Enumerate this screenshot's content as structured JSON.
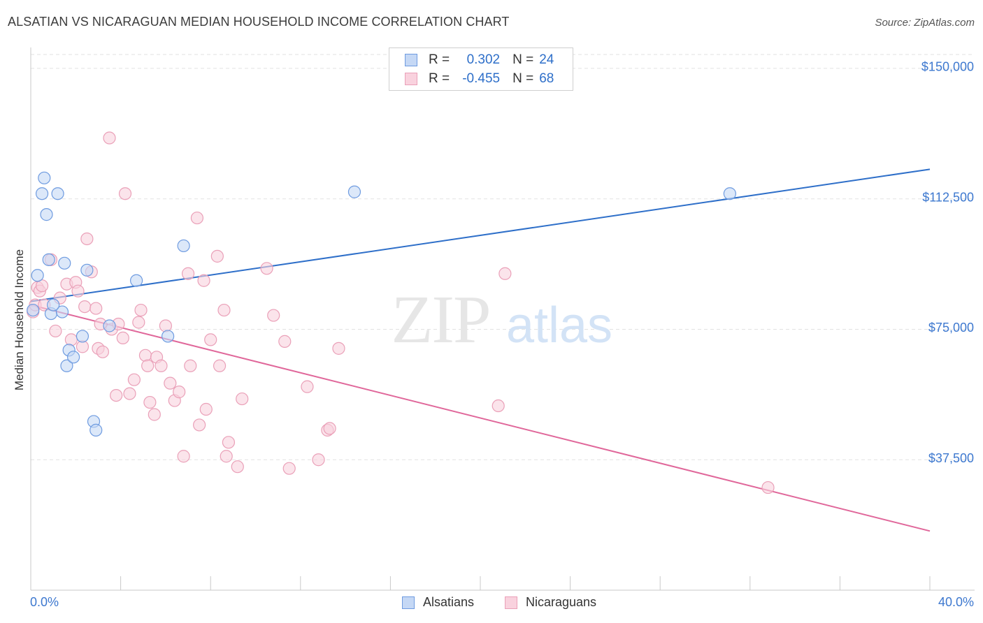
{
  "title": "ALSATIAN VS NICARAGUAN MEDIAN HOUSEHOLD INCOME CORRELATION CHART",
  "source": "Source: ZipAtlas.com",
  "watermark": {
    "zip": "ZIP",
    "atlas": "atlas"
  },
  "legend": {
    "alsatian": {
      "r_label": "R =",
      "r_value": "0.302",
      "n_label": "N =",
      "n_value": "24"
    },
    "nicaraguan": {
      "r_label": "R =",
      "r_value": "-0.455",
      "n_label": "N =",
      "n_value": "68"
    }
  },
  "bottom_legend": {
    "alsatians": "Alsatians",
    "nicaraguans": "Nicaraguans"
  },
  "colors": {
    "alsatian_fill": "#c5d8f5",
    "alsatian_stroke": "#6e9be0",
    "alsatian_line": "#2e6fc9",
    "nicaraguan_fill": "#f9d2de",
    "nicaraguan_stroke": "#eaa0b8",
    "nicaraguan_line": "#e0679a",
    "axis_label": "#3d78cf"
  },
  "chart_data": {
    "type": "scatter",
    "title": "ALSATIAN VS NICARAGUAN MEDIAN HOUSEHOLD INCOME CORRELATION CHART",
    "xlabel": "",
    "ylabel": "Median Household Income",
    "xlim": [
      0,
      40
    ],
    "ylim": [
      0,
      154000
    ],
    "x_tick_labels": [
      "0.0%",
      "40.0%"
    ],
    "y_ticks": [
      37500,
      75000,
      112500,
      150000
    ],
    "y_tick_labels": [
      "$37,500",
      "$75,000",
      "$112,500",
      "$150,000"
    ],
    "grid": true,
    "legend_position": "top-center",
    "series": [
      {
        "name": "Alsatians",
        "r": 0.302,
        "n": 24,
        "trend": {
          "x": [
            0,
            40
          ],
          "y": [
            83000,
            121000
          ]
        },
        "points": [
          [
            0.1,
            80500
          ],
          [
            0.3,
            90500
          ],
          [
            0.5,
            114000
          ],
          [
            0.6,
            118500
          ],
          [
            0.7,
            108000
          ],
          [
            0.8,
            95000
          ],
          [
            0.9,
            79500
          ],
          [
            1.2,
            114000
          ],
          [
            1.4,
            80000
          ],
          [
            1.5,
            94000
          ],
          [
            1.6,
            64500
          ],
          [
            1.7,
            69000
          ],
          [
            1.9,
            67000
          ],
          [
            2.3,
            73000
          ],
          [
            2.5,
            92000
          ],
          [
            2.8,
            48500
          ],
          [
            2.9,
            46000
          ],
          [
            3.5,
            76000
          ],
          [
            4.7,
            89000
          ],
          [
            6.1,
            73000
          ],
          [
            6.8,
            99000
          ],
          [
            14.4,
            114500
          ],
          [
            31.1,
            114000
          ],
          [
            1.0,
            82000
          ]
        ]
      },
      {
        "name": "Nicaraguans",
        "r": -0.455,
        "n": 68,
        "trend": {
          "x": [
            0,
            40
          ],
          "y": [
            82000,
            17000
          ]
        },
        "points": [
          [
            0.1,
            80000
          ],
          [
            0.2,
            82000
          ],
          [
            0.3,
            87000
          ],
          [
            0.4,
            86000
          ],
          [
            0.5,
            87500
          ],
          [
            0.6,
            82000
          ],
          [
            0.9,
            95000
          ],
          [
            1.1,
            74500
          ],
          [
            1.3,
            84000
          ],
          [
            1.6,
            88000
          ],
          [
            1.8,
            72000
          ],
          [
            2.0,
            88500
          ],
          [
            2.1,
            86000
          ],
          [
            2.3,
            70000
          ],
          [
            2.4,
            81500
          ],
          [
            2.5,
            101000
          ],
          [
            2.7,
            91500
          ],
          [
            2.9,
            81000
          ],
          [
            3.0,
            69500
          ],
          [
            3.1,
            76500
          ],
          [
            3.2,
            68500
          ],
          [
            3.5,
            130000
          ],
          [
            3.6,
            75000
          ],
          [
            3.8,
            56000
          ],
          [
            3.9,
            76500
          ],
          [
            4.1,
            72500
          ],
          [
            4.2,
            114000
          ],
          [
            4.4,
            56500
          ],
          [
            4.6,
            60500
          ],
          [
            4.8,
            77000
          ],
          [
            4.9,
            80500
          ],
          [
            5.1,
            67500
          ],
          [
            5.2,
            64500
          ],
          [
            5.3,
            54000
          ],
          [
            5.5,
            50500
          ],
          [
            5.6,
            67000
          ],
          [
            5.8,
            64500
          ],
          [
            6.0,
            76000
          ],
          [
            6.2,
            59500
          ],
          [
            6.4,
            54500
          ],
          [
            6.6,
            57000
          ],
          [
            6.8,
            38500
          ],
          [
            7.0,
            91000
          ],
          [
            7.1,
            64500
          ],
          [
            7.4,
            107000
          ],
          [
            7.5,
            47500
          ],
          [
            7.7,
            89000
          ],
          [
            7.8,
            52000
          ],
          [
            8.0,
            72000
          ],
          [
            8.3,
            96000
          ],
          [
            8.4,
            64500
          ],
          [
            8.6,
            80500
          ],
          [
            8.7,
            38500
          ],
          [
            8.8,
            42500
          ],
          [
            9.2,
            35500
          ],
          [
            9.4,
            55000
          ],
          [
            10.5,
            92500
          ],
          [
            10.8,
            79000
          ],
          [
            11.3,
            71500
          ],
          [
            11.5,
            35000
          ],
          [
            12.3,
            58500
          ],
          [
            12.8,
            37500
          ],
          [
            13.2,
            46000
          ],
          [
            13.3,
            46500
          ],
          [
            13.7,
            69500
          ],
          [
            20.8,
            53000
          ],
          [
            21.1,
            91000
          ],
          [
            32.8,
            29500
          ]
        ]
      }
    ]
  }
}
